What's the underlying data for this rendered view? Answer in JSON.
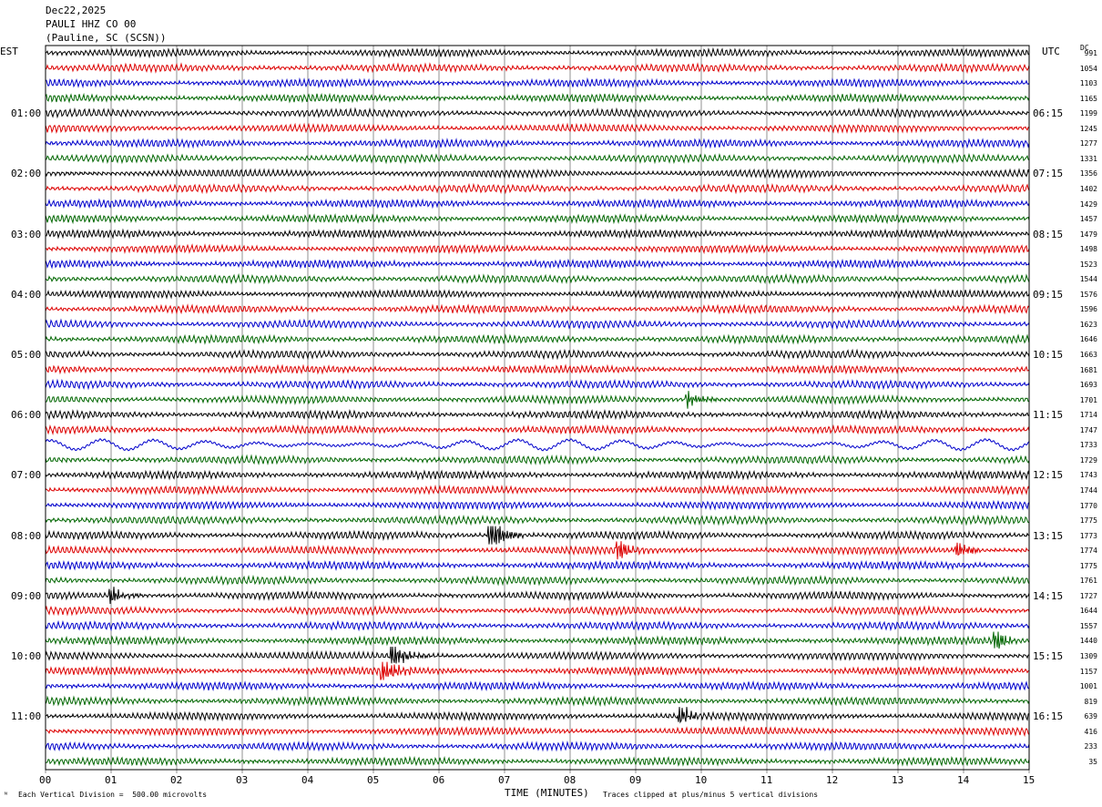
{
  "header": {
    "date": "Dec22,2025",
    "station": "PAULI HHZ CO 00",
    "location": "(Pauline, SC (SCSN))"
  },
  "left_tz": "EST",
  "right_tz": "UTC",
  "dc_label": "DC",
  "footer": {
    "scale_note": "Each Vertical Division =  500.00 microvolts",
    "xlabel": "TIME (MINUTES)",
    "clip_note": "Traces clipped at plus/minus 5 vertical divisions",
    "corner_mark": "ᴺ"
  },
  "colors": {
    "trace_cycle": [
      "#000000",
      "#dd0000",
      "#0000cc",
      "#006600"
    ],
    "grid": "#777777"
  },
  "chart_data": {
    "type": "line",
    "title": "PAULI HHZ CO 00",
    "xlabel": "TIME (MINUTES)",
    "x_ticks": [
      "00",
      "01",
      "02",
      "03",
      "04",
      "05",
      "06",
      "07",
      "08",
      "09",
      "10",
      "11",
      "12",
      "13",
      "14",
      "15"
    ],
    "xlim": [
      0,
      15
    ],
    "left_hour_labels": [
      "01:00",
      "02:00",
      "03:00",
      "04:00",
      "05:00",
      "06:00",
      "07:00",
      "08:00",
      "09:00",
      "10:00",
      "11:00"
    ],
    "right_hour_labels": [
      "06:15",
      "07:15",
      "08:15",
      "09:15",
      "10:15",
      "11:15",
      "12:15",
      "13:15",
      "14:15",
      "15:15",
      "16:15"
    ],
    "dc_offsets": [
      991,
      1054,
      1103,
      1165,
      1199,
      1245,
      1277,
      1331,
      1356,
      1402,
      1429,
      1457,
      1479,
      1498,
      1523,
      1544,
      1576,
      1596,
      1623,
      1646,
      1663,
      1681,
      1693,
      1701,
      1714,
      1747,
      1733,
      1729,
      1743,
      1744,
      1770,
      1775,
      1773,
      1774,
      1775,
      1761,
      1727,
      1644,
      1557,
      1440,
      1309,
      1157,
      1001,
      819,
      639,
      416,
      233,
      35
    ],
    "events": [
      {
        "row": 32,
        "minute": 6.8,
        "strength": 3.0
      },
      {
        "row": 33,
        "minute": 8.75,
        "strength": 1.4
      },
      {
        "row": 33,
        "minute": 13.9,
        "strength": 1.3
      },
      {
        "row": 36,
        "minute": 1.0,
        "strength": 1.3
      },
      {
        "row": 40,
        "minute": 5.3,
        "strength": 2.2
      },
      {
        "row": 41,
        "minute": 5.15,
        "strength": 2.0
      },
      {
        "row": 39,
        "minute": 14.5,
        "strength": 1.5
      },
      {
        "row": 23,
        "minute": 9.8,
        "strength": 1.3
      },
      {
        "row": 44,
        "minute": 9.7,
        "strength": 1.2
      }
    ]
  }
}
